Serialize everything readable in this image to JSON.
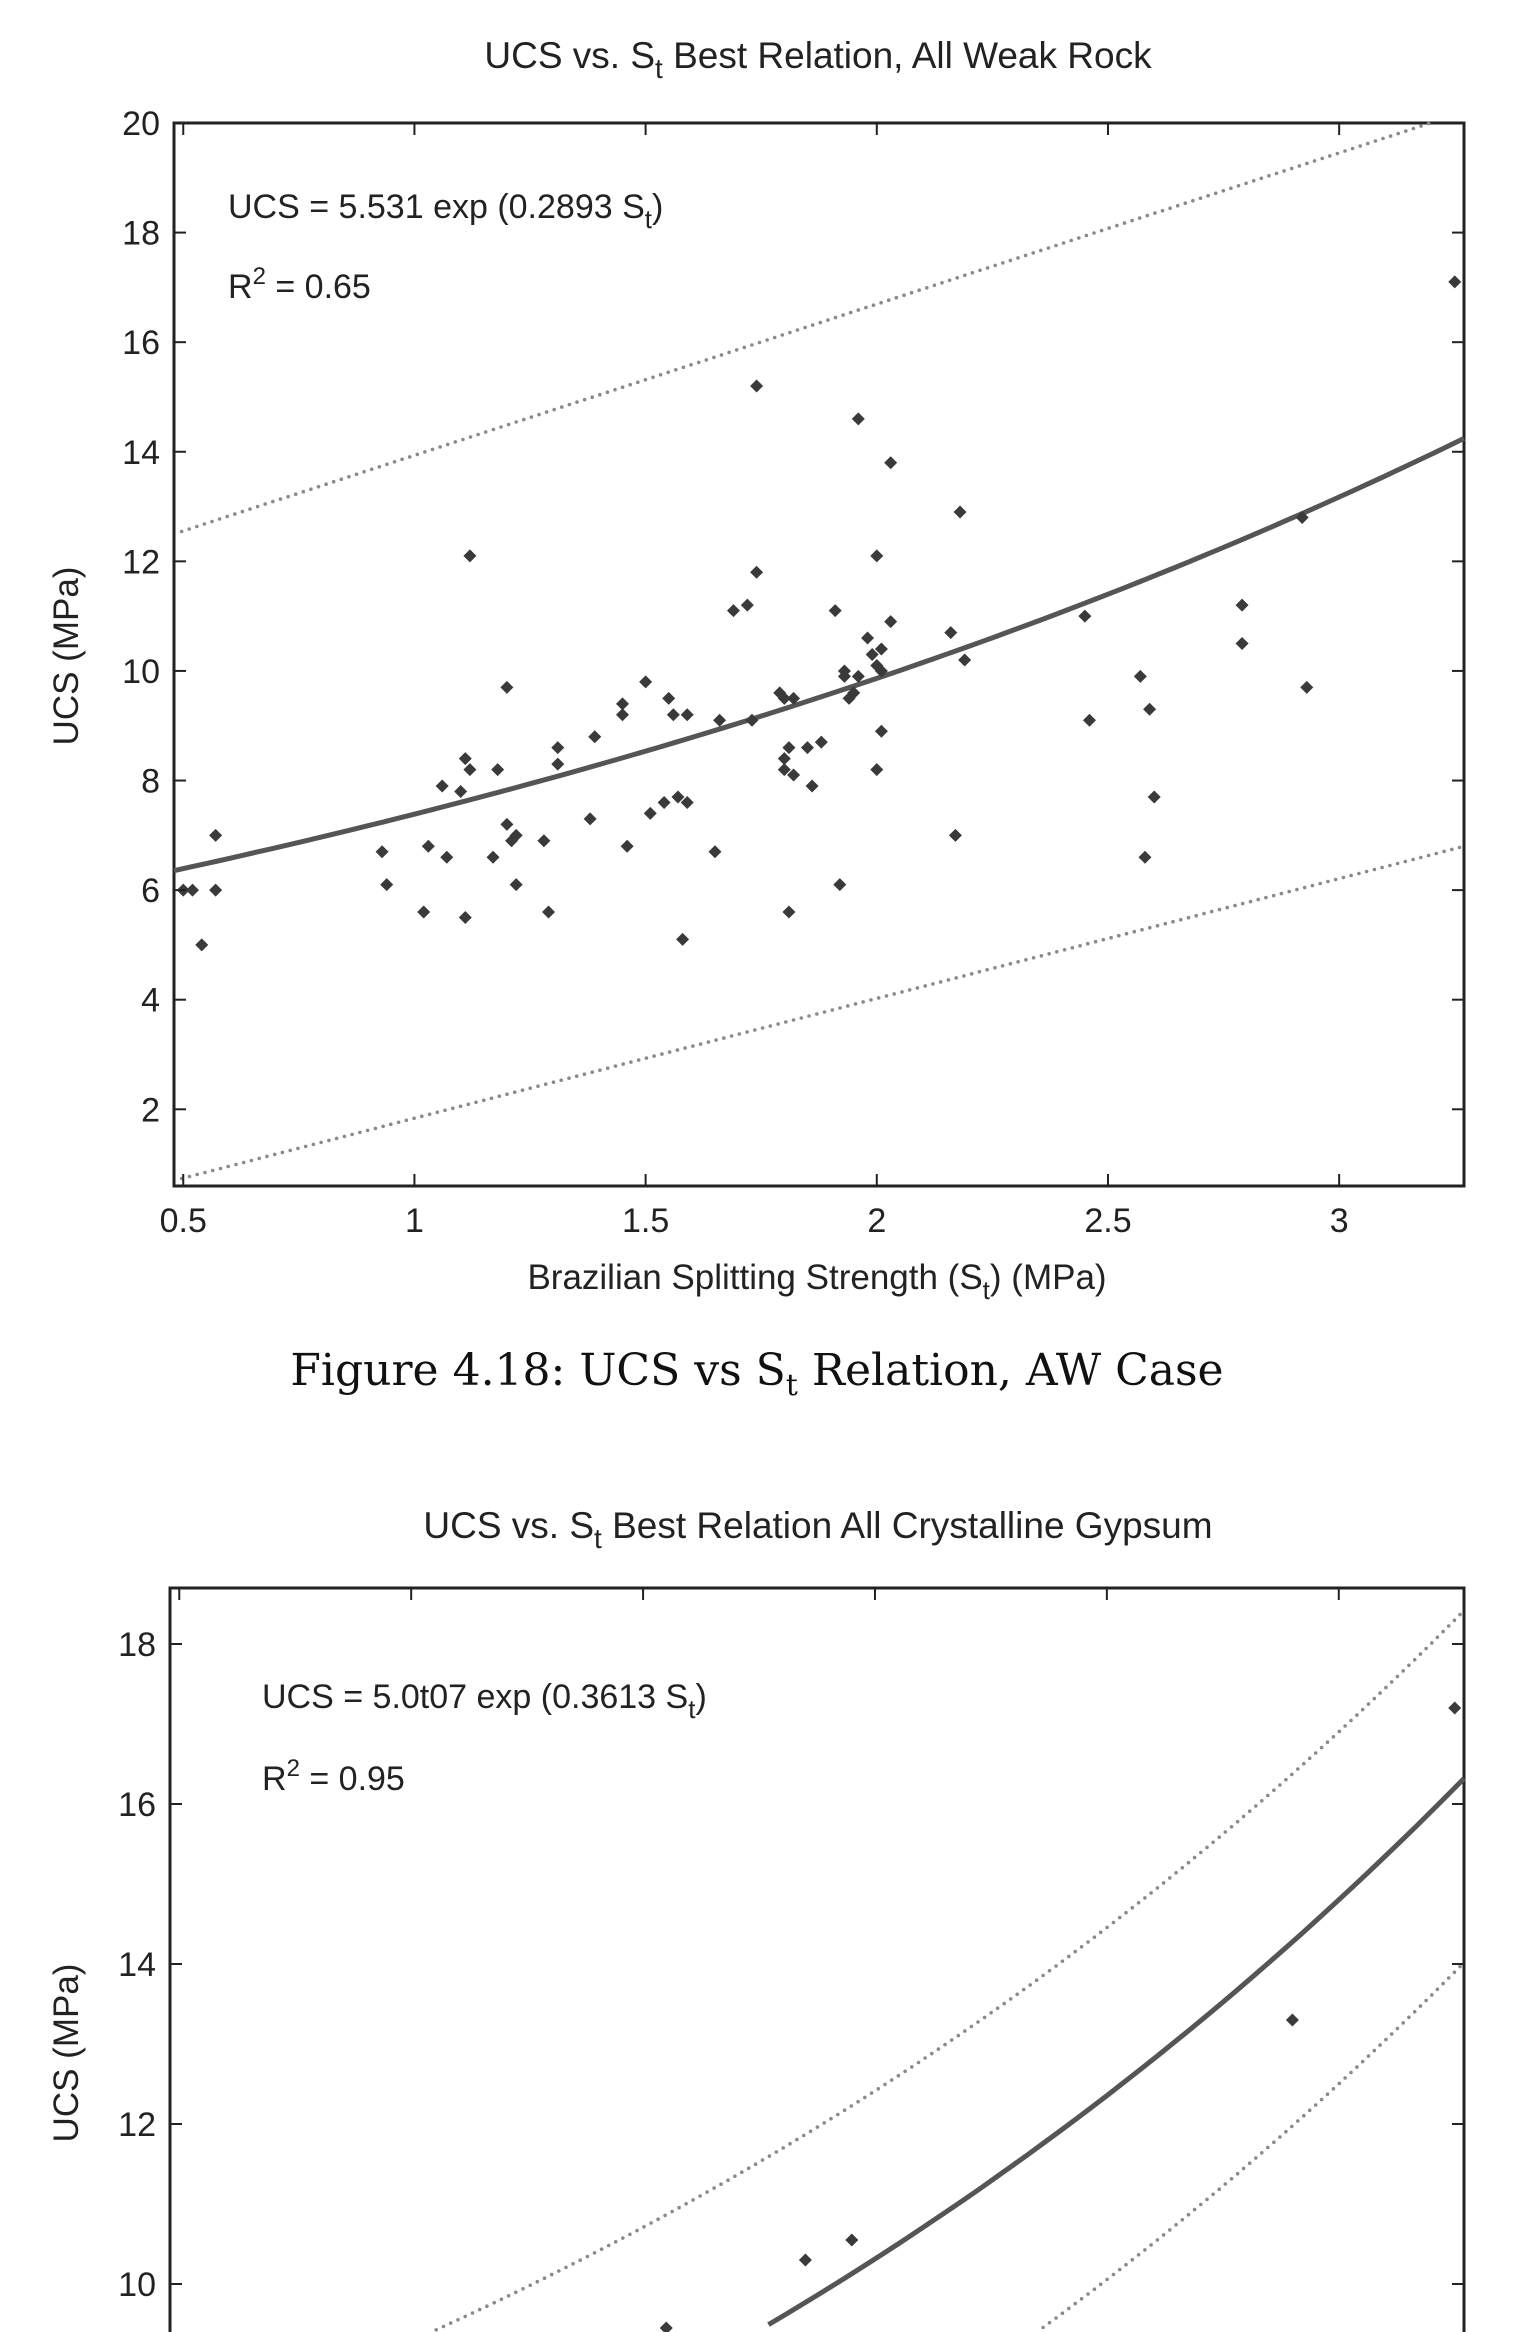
{
  "figure_caption": {
    "prefix": "Figure 4.18: UCS vs S",
    "sub": "t",
    "suffix": " Relation, AW Case"
  },
  "colors": {
    "axis": "#222222",
    "marker": "#3a3a3a",
    "fit": "#555555",
    "bound": "#8a8a8a",
    "text": "#222222"
  },
  "chart_data": [
    {
      "type": "scatter",
      "title": {
        "main": "UCS vs. S",
        "sub": "t",
        "rest": " Best Relation, All Weak Rock"
      },
      "xlabel": {
        "main": "Brazilian Splitting Strength (S",
        "sub": "t",
        "rest": ") (MPa)"
      },
      "ylabel": "UCS (MPa)",
      "xlim": [
        0.48,
        3.27
      ],
      "ylim": [
        0.6,
        20
      ],
      "xticks": [
        0.5,
        1,
        1.5,
        2,
        2.5,
        3
      ],
      "xtick_labels": [
        "0.5",
        "1",
        "1.5",
        "2",
        "2.5",
        "3"
      ],
      "yticks": [
        2,
        4,
        6,
        8,
        10,
        12,
        14,
        16,
        18,
        20
      ],
      "ytick_labels": [
        "2",
        "4",
        "6",
        "8",
        "10",
        "12",
        "14",
        "16",
        "18",
        "20"
      ],
      "equation": {
        "main": "UCS = 5.531 exp (0.2893 S",
        "sub": "t",
        "rest": ")"
      },
      "r2": {
        "pre": "R",
        "sup": "2",
        "post": " = 0.65"
      },
      "fit": {
        "model": "exponential",
        "a": 5.531,
        "b": 0.2893
      },
      "upper_bound": {
        "start": [
          0.48,
          12.5
        ],
        "end": [
          3.27,
          20.2
        ]
      },
      "lower_bound": {
        "start": [
          0.48,
          0.7
        ],
        "end": [
          3.27,
          6.8
        ]
      },
      "grid": false,
      "points": {
        "x": [
          0.5,
          0.52,
          0.54,
          0.57,
          0.57,
          0.93,
          0.94,
          1.02,
          1.03,
          1.06,
          1.07,
          1.1,
          1.11,
          1.12,
          1.11,
          1.12,
          1.17,
          1.18,
          1.2,
          1.21,
          1.22,
          1.2,
          1.22,
          1.28,
          1.29,
          1.31,
          1.31,
          1.38,
          1.39,
          1.45,
          1.45,
          1.46,
          1.5,
          1.51,
          1.54,
          1.55,
          1.56,
          1.57,
          1.58,
          1.59,
          1.59,
          1.65,
          1.66,
          1.69,
          1.72,
          1.73,
          1.74,
          1.74,
          1.79,
          1.8,
          1.8,
          1.81,
          1.8,
          1.81,
          1.82,
          1.82,
          1.85,
          1.86,
          1.88,
          1.91,
          1.92,
          1.93,
          1.93,
          1.94,
          1.95,
          1.96,
          1.96,
          1.98,
          1.99,
          2.0,
          2.0,
          2.01,
          2.01,
          2.0,
          2.01,
          2.03,
          2.03,
          2.16,
          2.17,
          2.18,
          2.19,
          2.45,
          2.46,
          2.57,
          2.58,
          2.59,
          2.6,
          2.79,
          2.79,
          2.92,
          2.93,
          3.25
        ],
        "y": [
          6.0,
          6.0,
          5.0,
          6.0,
          7.0,
          6.7,
          6.1,
          5.6,
          6.8,
          7.9,
          6.6,
          7.8,
          8.4,
          12.1,
          5.5,
          8.2,
          6.6,
          8.2,
          9.7,
          6.9,
          7.0,
          7.2,
          6.1,
          6.9,
          5.6,
          8.6,
          8.3,
          7.3,
          8.8,
          9.4,
          9.2,
          6.8,
          9.8,
          7.4,
          7.6,
          9.5,
          9.2,
          7.7,
          5.1,
          7.6,
          9.2,
          6.7,
          9.1,
          11.1,
          11.2,
          9.1,
          11.8,
          15.2,
          9.6,
          8.4,
          9.5,
          5.6,
          8.2,
          8.6,
          9.5,
          8.1,
          8.6,
          7.9,
          8.7,
          11.1,
          6.1,
          9.9,
          10.0,
          9.5,
          9.6,
          9.9,
          14.6,
          10.6,
          10.3,
          8.2,
          12.1,
          10.4,
          8.9,
          10.1,
          10.0,
          13.8,
          10.9,
          10.7,
          7.0,
          12.9,
          10.2,
          11.0,
          9.1,
          9.9,
          6.6,
          9.3,
          7.7,
          11.2,
          10.5,
          12.8,
          9.7,
          17.1
        ]
      }
    },
    {
      "type": "scatter",
      "title": {
        "main": "UCS vs. S",
        "sub": "t",
        "rest": " Best Relation All Crystalline Gypsum"
      },
      "ylabel": "UCS (MPa)",
      "xlim": [
        0.48,
        3.27
      ],
      "ylim": [
        9.2,
        18.7
      ],
      "yticks": [
        10,
        12,
        14,
        16,
        18
      ],
      "ytick_labels": [
        "10",
        "12",
        "14",
        "16",
        "18"
      ],
      "equation": {
        "main": "UCS = 5.0t07 exp (0.3613 S",
        "sub": "t",
        "rest": ")"
      },
      "r2": {
        "pre": "R",
        "sup": "2",
        "post": " = 0.95"
      },
      "fit": {
        "model": "exponential",
        "a": 5.007,
        "b": 0.3613
      },
      "upper_bound_offset": 2.1,
      "lower_bound_offset": -2.3,
      "grid": false,
      "points": {
        "x": [
          1.55,
          1.85,
          1.95,
          2.9,
          3.25
        ],
        "y": [
          9.45,
          10.3,
          10.55,
          13.3,
          17.2
        ]
      }
    }
  ]
}
